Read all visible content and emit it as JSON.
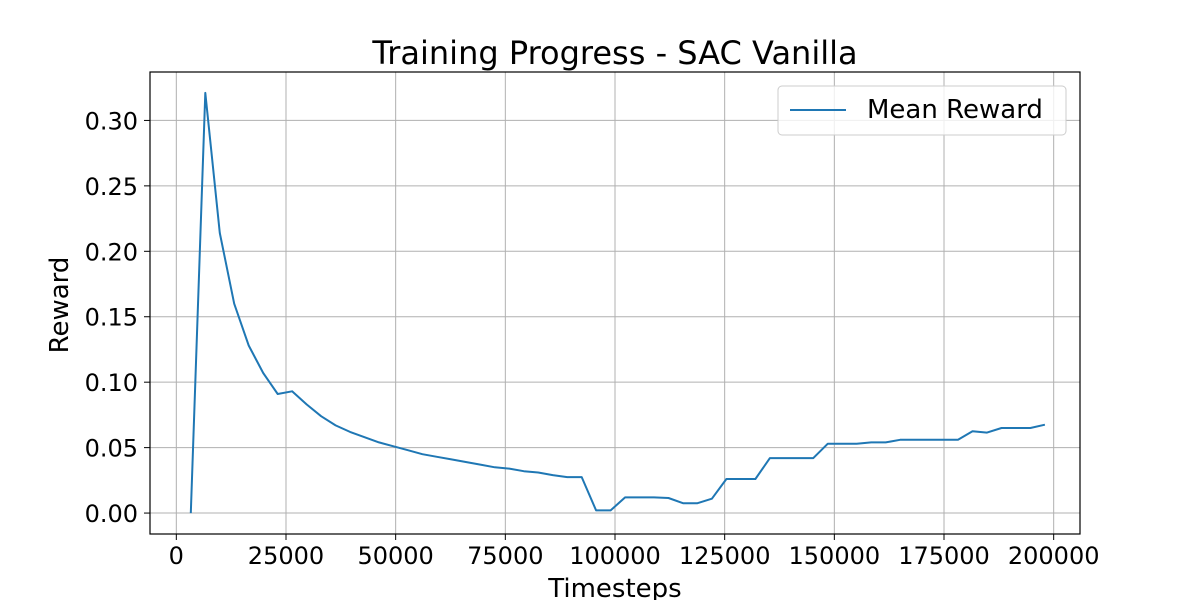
{
  "chart_data": {
    "type": "line",
    "title": "Training Progress - SAC Vanilla",
    "xlabel": "Timesteps",
    "ylabel": "Reward",
    "xlim": [
      -6000,
      206000
    ],
    "ylim": [
      -0.016,
      0.337
    ],
    "xticks": [
      0,
      25000,
      50000,
      75000,
      100000,
      125000,
      150000,
      175000,
      200000
    ],
    "xtick_labels": [
      "0",
      "25000",
      "50000",
      "75000",
      "100000",
      "125000",
      "150000",
      "175000",
      "200000"
    ],
    "yticks": [
      0.0,
      0.05,
      0.1,
      0.15,
      0.2,
      0.25,
      0.3
    ],
    "ytick_labels": [
      "0.00",
      "0.05",
      "0.10",
      "0.15",
      "0.20",
      "0.25",
      "0.30"
    ],
    "grid": true,
    "legend_position": "top-right",
    "series": [
      {
        "name": "Mean Reward",
        "color": "#1f77b4",
        "x": [
          3300,
          6600,
          9900,
          13200,
          16500,
          19800,
          23100,
          26400,
          29700,
          33000,
          36300,
          39600,
          42900,
          46200,
          49500,
          52800,
          56100,
          59400,
          62700,
          66000,
          69300,
          72600,
          75900,
          79200,
          82500,
          85800,
          89100,
          92400,
          95700,
          99000,
          102300,
          105600,
          108900,
          112200,
          115500,
          118800,
          122100,
          125400,
          128700,
          132000,
          135300,
          138600,
          141900,
          145200,
          148500,
          151800,
          155100,
          158400,
          161700,
          165000,
          168300,
          171600,
          174900,
          178200,
          181500,
          184800,
          188100,
          191400,
          194700,
          198000
        ],
        "y": [
          0.0,
          0.321,
          0.214,
          0.16,
          0.128,
          0.107,
          0.091,
          0.093,
          0.083,
          0.074,
          0.067,
          0.062,
          0.058,
          0.054,
          0.051,
          0.048,
          0.045,
          0.043,
          0.041,
          0.039,
          0.037,
          0.035,
          0.034,
          0.032,
          0.031,
          0.029,
          0.0275,
          0.0275,
          0.002,
          0.002,
          0.012,
          0.012,
          0.012,
          0.0115,
          0.0075,
          0.0075,
          0.011,
          0.026,
          0.026,
          0.026,
          0.042,
          0.042,
          0.042,
          0.042,
          0.053,
          0.053,
          0.053,
          0.054,
          0.054,
          0.056,
          0.056,
          0.056,
          0.056,
          0.056,
          0.0625,
          0.0615,
          0.065,
          0.065,
          0.065,
          0.0675
        ]
      }
    ]
  }
}
